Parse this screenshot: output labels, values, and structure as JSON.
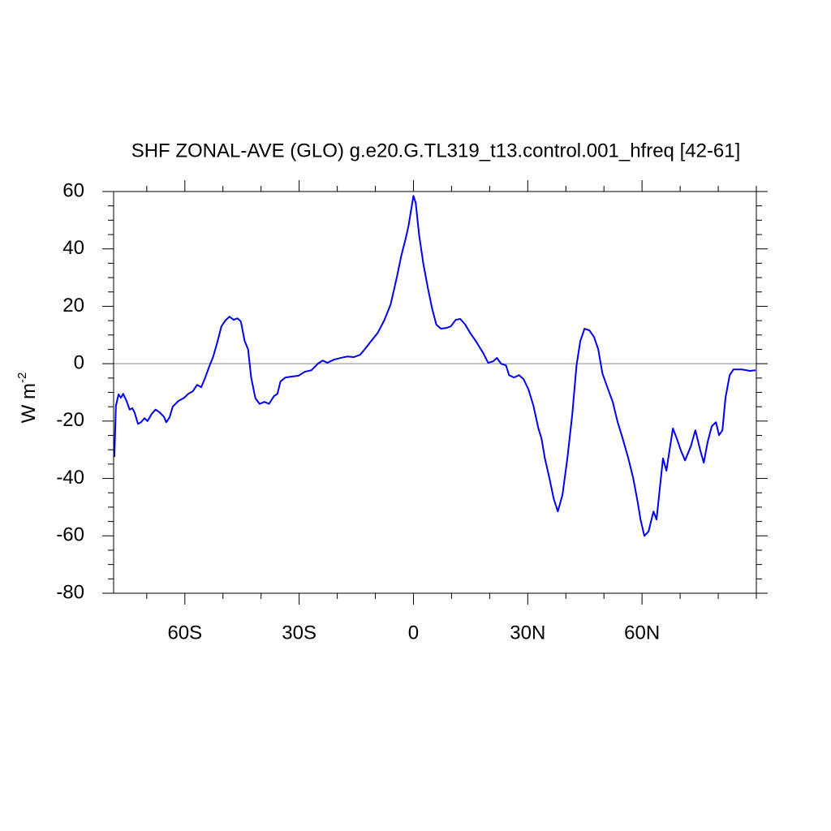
{
  "chart_data": {
    "type": "line",
    "title": "SHF ZONAL-AVE (GLO) g.e20.G.TL319_t13.control.001_hfreq [42-61]",
    "ylabel": {
      "text": "W m",
      "superscript": "-2"
    },
    "xlim": [
      -78.7,
      90
    ],
    "ylim": [
      -80,
      60
    ],
    "xticks": [
      {
        "value": -60,
        "label": "60S"
      },
      {
        "value": -30,
        "label": "30S"
      },
      0,
      {
        "value": 30,
        "label": "30N"
      },
      {
        "value": 60,
        "label": "60N"
      }
    ],
    "yticks": [
      -80,
      -60,
      -40,
      -20,
      0,
      20,
      40,
      60
    ],
    "zero_line": true,
    "zero_line_color": "#888888",
    "series": [
      {
        "color": "#0000ee",
        "x": [
          -78.5,
          -78.1,
          -77.4,
          -76.8,
          -76.2,
          -75.3,
          -74.5,
          -73.8,
          -73.2,
          -72.3,
          -71.5,
          -70.6,
          -69.8,
          -68.7,
          -67.7,
          -66.6,
          -65.5,
          -64.9,
          -64.0,
          -63.2,
          -61.7,
          -60.2,
          -59.1,
          -57.9,
          -56.8,
          -55.7,
          -54.7,
          -53.6,
          -52.6,
          -51.5,
          -50.4,
          -49.4,
          -48.3,
          -47.2,
          -46.2,
          -45.3,
          -44.3,
          -43.4,
          -42.6,
          -41.5,
          -40.4,
          -39.1,
          -37.9,
          -36.6,
          -35.7,
          -34.9,
          -33.6,
          -31.9,
          -30.2,
          -28.5,
          -26.8,
          -25.1,
          -23.8,
          -22.6,
          -20.9,
          -19.1,
          -17.4,
          -15.7,
          -14.0,
          -12.8,
          -11.1,
          -9.4,
          -7.7,
          -6.0,
          -4.3,
          -3.2,
          -2.1,
          -1.3,
          -0.6,
          0,
          0.6,
          1.5,
          2.6,
          3.8,
          4.9,
          6.0,
          7.2,
          8.5,
          9.8,
          11.1,
          12.3,
          13.6,
          14.9,
          16.6,
          18.3,
          19.6,
          20.9,
          21.9,
          23.0,
          24.3,
          25.1,
          26.4,
          27.7,
          28.9,
          30.2,
          31.5,
          32.8,
          33.6,
          34.5,
          35.7,
          36.8,
          37.9,
          39.1,
          40.4,
          41.7,
          42.8,
          43.8,
          44.9,
          46.2,
          47.4,
          48.5,
          49.6,
          51.1,
          52.3,
          53.6,
          54.9,
          56.4,
          57.7,
          58.9,
          59.6,
          60.6,
          61.7,
          63.0,
          63.8,
          64.7,
          65.5,
          66.4,
          67.2,
          68.1,
          69.1,
          70.2,
          71.3,
          72.8,
          74.0,
          75.3,
          76.2,
          77.2,
          78.3,
          79.4,
          80.2,
          81.1,
          81.9,
          83.0,
          84.0,
          86.2,
          88.3,
          89.8
        ],
        "values": [
          -32.5,
          -14.7,
          -10.7,
          -11.9,
          -10.5,
          -13,
          -16,
          -15.5,
          -17,
          -21,
          -20.4,
          -19,
          -20,
          -17.5,
          -16,
          -17,
          -18.5,
          -20.4,
          -18.7,
          -15,
          -13,
          -11.9,
          -10.5,
          -9.6,
          -7.4,
          -8.2,
          -5,
          -1,
          2.3,
          7.4,
          13,
          15,
          16.4,
          15.3,
          15.8,
          14.7,
          7.9,
          5,
          -4.8,
          -12,
          -14,
          -13.3,
          -14,
          -11.3,
          -10.5,
          -6.2,
          -4.8,
          -4.5,
          -4.2,
          -2.8,
          -2.3,
          0,
          1.1,
          0.3,
          1.4,
          2,
          2.5,
          2.3,
          3.1,
          5,
          7.9,
          10.7,
          15,
          20.6,
          30.5,
          37.6,
          43.3,
          48,
          53.7,
          58.5,
          56,
          44.7,
          34.8,
          26.3,
          19.2,
          13.6,
          12.2,
          12.4,
          13,
          15.3,
          15.6,
          13.6,
          10.7,
          7.4,
          3.7,
          0.3,
          0.8,
          2,
          0,
          -0.6,
          -4,
          -4.8,
          -4,
          -5.4,
          -9,
          -14.7,
          -22.6,
          -26,
          -33,
          -40,
          -47,
          -51.5,
          -45.8,
          -33,
          -17.5,
          -0.6,
          7.9,
          12.2,
          11.6,
          9.3,
          5,
          -3.4,
          -9,
          -13.3,
          -20.4,
          -26,
          -33,
          -40,
          -48.6,
          -54.3,
          -60,
          -58.5,
          -51.5,
          -54.3,
          -43,
          -33,
          -37.3,
          -30.3,
          -22.6,
          -26,
          -30.3,
          -33.7,
          -28.8,
          -23.2,
          -30.3,
          -34.5,
          -27.4,
          -21.8,
          -20.4,
          -24.9,
          -23.2,
          -11.9,
          -4,
          -2,
          -2,
          -2.5,
          -2.3
        ]
      }
    ]
  }
}
